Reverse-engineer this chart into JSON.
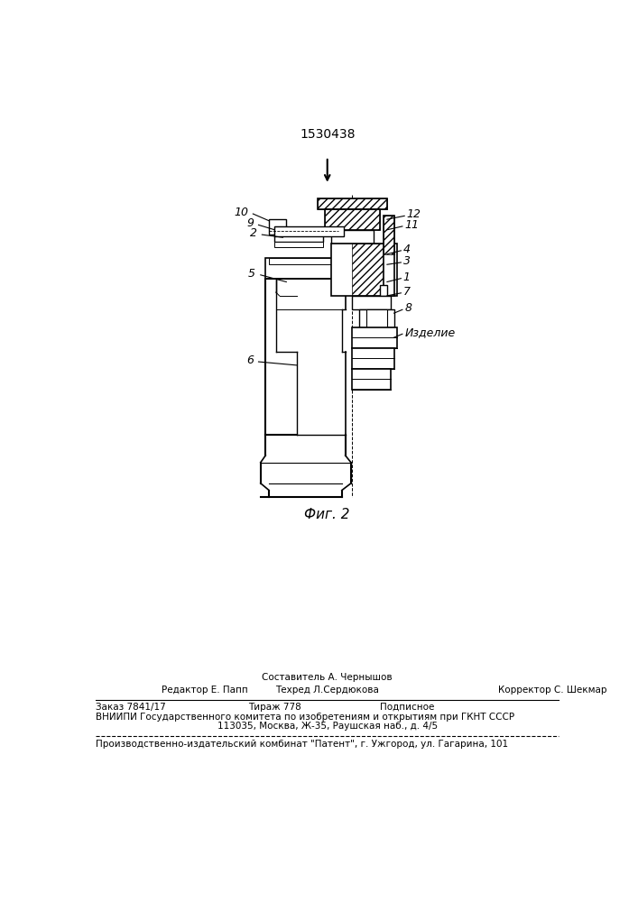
{
  "patent_number": "1530438",
  "fig_label": "Фиг. 2",
  "bg_color": "#ffffff",
  "line_color": "#000000",
  "footer_sestavitel": "Составитель А. Чернышов",
  "footer_editor": "Редактор Е. Папп",
  "footer_tekhred": "Техред Л.Сердюкова",
  "footer_korrektor": "Корректор С. Шекмар",
  "footer_zakaz": "Заказ 7841/17",
  "footer_tirazh": "Тираж 778",
  "footer_podpisnoe": "Подписное",
  "footer_vniipи": "ВНИИПИ Государственного комитета по изобретениям и открытиям при ГКНТ СССР",
  "footer_address": "113035, Москва, Ж-35, Раушская наб., д. 4/5",
  "footer_patent": "Производственно-издательский комбинат \"Патент\", г. Ужгород, ул. Гагарина, 101"
}
